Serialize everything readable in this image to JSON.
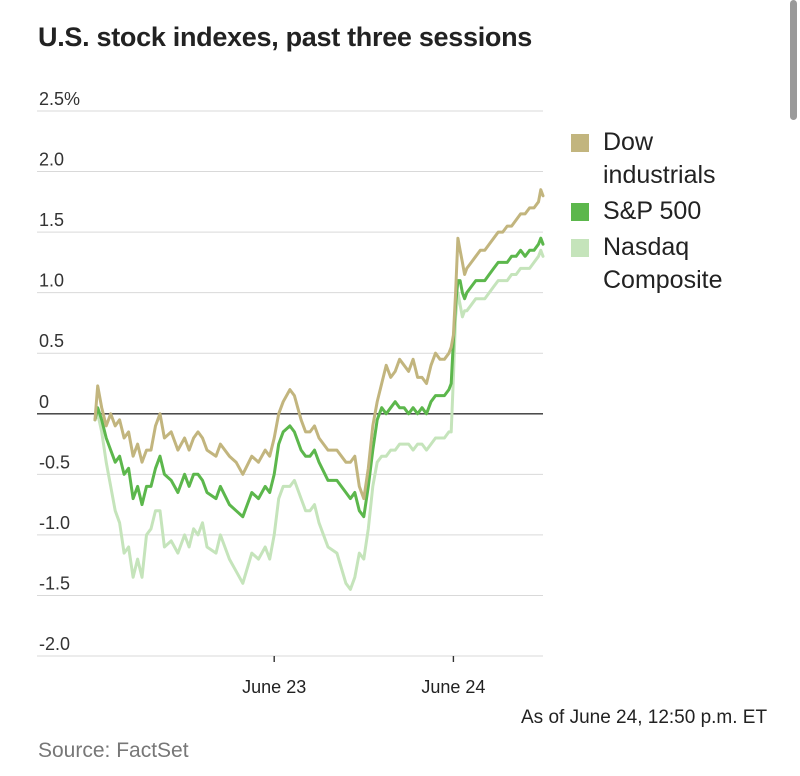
{
  "title": "U.S. stock indexes, past three sessions",
  "note": "As of June 24, 12:50 p.m. ET",
  "source": "Source: FactSet",
  "chart_data": {
    "type": "line",
    "title": "U.S. stock indexes, past three sessions",
    "ylabel": "",
    "xlabel": "",
    "ylim": [
      -2.0,
      2.5
    ],
    "yticks": [
      {
        "value": 2.5,
        "label": "2.5%"
      },
      {
        "value": 2.0,
        "label": "2.0"
      },
      {
        "value": 1.5,
        "label": "1.5"
      },
      {
        "value": 1.0,
        "label": "1.0"
      },
      {
        "value": 0.5,
        "label": "0.5"
      },
      {
        "value": 0,
        "label": "0"
      },
      {
        "value": -0.5,
        "label": "-0.5"
      },
      {
        "value": -1.0,
        "label": "-1.0"
      },
      {
        "value": -1.5,
        "label": "-1.5"
      },
      {
        "value": -2.0,
        "label": "-2.0"
      }
    ],
    "xlim": [
      0,
      100
    ],
    "xticks": [
      {
        "value": 40,
        "label": "June 23"
      },
      {
        "value": 80,
        "label": "June 24"
      }
    ],
    "grid": true,
    "legend_position": "right",
    "series": [
      {
        "name": "Dow industrials",
        "name_lines": [
          "Dow",
          "industrials"
        ],
        "color": "#c2b57e",
        "x": [
          0,
          0.6,
          1.5,
          2.5,
          3.5,
          4.5,
          5.5,
          6.5,
          7.5,
          8.5,
          9.5,
          10.5,
          11.5,
          12.5,
          13.5,
          14.5,
          15.5,
          17,
          18.5,
          20,
          21,
          22,
          23,
          24,
          25,
          27,
          28,
          30,
          31.5,
          33,
          35,
          36.5,
          38,
          39,
          40,
          41,
          42,
          43.5,
          44.5,
          46,
          47,
          48,
          49,
          50,
          52,
          54,
          56,
          57,
          58,
          59,
          60,
          61,
          62,
          63,
          64,
          65,
          66,
          67,
          68,
          69,
          70,
          71,
          72,
          73,
          74,
          75,
          76,
          77,
          78,
          79,
          79.5,
          80,
          80.5,
          81,
          81.5,
          82,
          82.5,
          83,
          84,
          85,
          86,
          87,
          88,
          89,
          90,
          91,
          92,
          93,
          94,
          95,
          96,
          97,
          98,
          99,
          99.5,
          100
        ],
        "values": [
          -0.05,
          0.23,
          0.05,
          -0.1,
          0.0,
          -0.1,
          -0.05,
          -0.2,
          -0.15,
          -0.35,
          -0.25,
          -0.4,
          -0.3,
          -0.3,
          -0.1,
          0.0,
          -0.2,
          -0.15,
          -0.3,
          -0.2,
          -0.3,
          -0.2,
          -0.15,
          -0.2,
          -0.3,
          -0.35,
          -0.25,
          -0.35,
          -0.4,
          -0.5,
          -0.35,
          -0.4,
          -0.3,
          -0.35,
          -0.2,
          0.0,
          0.1,
          0.2,
          0.15,
          -0.05,
          -0.15,
          -0.15,
          -0.1,
          -0.2,
          -0.3,
          -0.3,
          -0.4,
          -0.4,
          -0.35,
          -0.6,
          -0.7,
          -0.45,
          -0.1,
          0.1,
          0.25,
          0.4,
          0.3,
          0.35,
          0.45,
          0.4,
          0.35,
          0.45,
          0.3,
          0.3,
          0.25,
          0.4,
          0.5,
          0.45,
          0.45,
          0.5,
          0.55,
          0.65,
          1.0,
          1.45,
          1.35,
          1.25,
          1.15,
          1.2,
          1.25,
          1.3,
          1.35,
          1.35,
          1.4,
          1.45,
          1.5,
          1.5,
          1.55,
          1.55,
          1.6,
          1.65,
          1.65,
          1.7,
          1.7,
          1.75,
          1.85,
          1.8
        ]
      },
      {
        "name": "S&P 500",
        "name_lines": [
          "S&P 500"
        ],
        "color": "#5cb74c",
        "x": [
          0,
          0.6,
          1.5,
          2.5,
          3.5,
          4.5,
          5.5,
          6.5,
          7.5,
          8.5,
          9.5,
          10.5,
          11.5,
          12.5,
          13.5,
          14.5,
          15.5,
          17,
          18.5,
          20,
          21,
          22,
          23,
          24,
          25,
          27,
          28,
          30,
          31.5,
          33,
          35,
          36.5,
          38,
          39,
          40,
          41,
          42,
          43.5,
          44.5,
          46,
          47,
          48,
          49,
          50,
          52,
          54,
          56,
          57,
          58,
          59,
          60,
          61,
          62,
          63,
          64,
          65,
          66,
          67,
          68,
          69,
          70,
          71,
          72,
          73,
          74,
          75,
          76,
          77,
          78,
          79,
          79.5,
          80,
          80.5,
          81,
          81.5,
          82,
          82.5,
          83,
          84,
          85,
          86,
          87,
          88,
          89,
          90,
          91,
          92,
          93,
          94,
          95,
          96,
          97,
          98,
          99,
          99.5,
          100
        ],
        "values": [
          -0.05,
          0.05,
          -0.05,
          -0.2,
          -0.3,
          -0.4,
          -0.35,
          -0.5,
          -0.45,
          -0.7,
          -0.6,
          -0.75,
          -0.6,
          -0.6,
          -0.45,
          -0.35,
          -0.5,
          -0.55,
          -0.65,
          -0.5,
          -0.6,
          -0.5,
          -0.5,
          -0.55,
          -0.65,
          -0.7,
          -0.6,
          -0.75,
          -0.8,
          -0.85,
          -0.65,
          -0.7,
          -0.6,
          -0.65,
          -0.5,
          -0.25,
          -0.15,
          -0.1,
          -0.15,
          -0.3,
          -0.35,
          -0.35,
          -0.3,
          -0.4,
          -0.55,
          -0.55,
          -0.65,
          -0.7,
          -0.65,
          -0.8,
          -0.85,
          -0.6,
          -0.3,
          -0.05,
          0.05,
          0.0,
          0.05,
          0.1,
          0.05,
          0.05,
          0.0,
          0.05,
          0.0,
          0.05,
          0.0,
          0.1,
          0.15,
          0.15,
          0.15,
          0.2,
          0.25,
          0.6,
          0.9,
          1.1,
          1.1,
          1.0,
          0.95,
          1.0,
          1.05,
          1.1,
          1.1,
          1.1,
          1.15,
          1.2,
          1.25,
          1.25,
          1.25,
          1.3,
          1.3,
          1.35,
          1.3,
          1.35,
          1.35,
          1.4,
          1.45,
          1.4
        ]
      },
      {
        "name": "Nasdaq Composite",
        "name_lines": [
          "Nasdaq",
          "Composite"
        ],
        "color": "#c5e4bb",
        "x": [
          0,
          0.6,
          1.5,
          2.5,
          3.5,
          4.5,
          5.5,
          6.5,
          7.5,
          8.5,
          9.5,
          10.5,
          11.5,
          12.5,
          13.5,
          14.5,
          15.5,
          17,
          18.5,
          20,
          21,
          22,
          23,
          24,
          25,
          27,
          28,
          30,
          31.5,
          33,
          35,
          36.5,
          38,
          39,
          40,
          41,
          42,
          43.5,
          44.5,
          46,
          47,
          48,
          49,
          50,
          52,
          54,
          56,
          57,
          58,
          59,
          60,
          61,
          62,
          63,
          64,
          65,
          66,
          67,
          68,
          69,
          70,
          71,
          72,
          73,
          74,
          75,
          76,
          77,
          78,
          79,
          79.5,
          80,
          80.5,
          81,
          81.5,
          82,
          82.5,
          83,
          84,
          85,
          86,
          87,
          88,
          89,
          90,
          91,
          92,
          93,
          94,
          95,
          96,
          97,
          98,
          99,
          99.5,
          100
        ],
        "values": [
          -0.05,
          0.0,
          -0.15,
          -0.4,
          -0.6,
          -0.8,
          -0.9,
          -1.15,
          -1.1,
          -1.35,
          -1.2,
          -1.35,
          -1.0,
          -0.95,
          -0.8,
          -0.8,
          -1.1,
          -1.05,
          -1.15,
          -1.0,
          -1.1,
          -0.95,
          -1.0,
          -0.9,
          -1.1,
          -1.15,
          -1.0,
          -1.2,
          -1.3,
          -1.4,
          -1.15,
          -1.2,
          -1.1,
          -1.2,
          -1.0,
          -0.7,
          -0.6,
          -0.6,
          -0.55,
          -0.7,
          -0.8,
          -0.8,
          -0.75,
          -0.9,
          -1.1,
          -1.15,
          -1.4,
          -1.45,
          -1.35,
          -1.15,
          -1.2,
          -0.95,
          -0.6,
          -0.4,
          -0.35,
          -0.35,
          -0.3,
          -0.3,
          -0.25,
          -0.25,
          -0.25,
          -0.3,
          -0.25,
          -0.25,
          -0.3,
          -0.25,
          -0.2,
          -0.2,
          -0.2,
          -0.15,
          -0.15,
          0.3,
          0.8,
          1.0,
          0.9,
          0.8,
          0.85,
          0.85,
          0.9,
          0.95,
          0.95,
          0.95,
          1.0,
          1.05,
          1.1,
          1.1,
          1.1,
          1.15,
          1.15,
          1.2,
          1.2,
          1.2,
          1.25,
          1.3,
          1.35,
          1.3
        ]
      }
    ]
  }
}
